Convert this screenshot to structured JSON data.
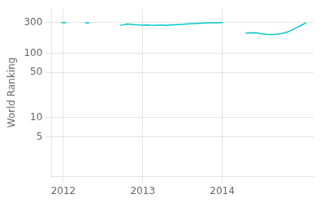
{
  "chart_data": {
    "type": "line",
    "ylabel": "World Ranking",
    "log": "y",
    "grid": true,
    "series": [
      {
        "color": "#00c8c8",
        "x": [
          2011.98,
          2012.03
        ],
        "values": [
          300,
          299
        ]
      },
      {
        "color": "#00c8c8",
        "x": [
          2012.28,
          2012.32
        ],
        "values": [
          296,
          295
        ]
      },
      {
        "color": "#00c8c8",
        "x": [
          2012.72,
          2012.76,
          2012.8,
          2012.85,
          2012.9,
          2012.95,
          2013.0,
          2013.05,
          2013.1,
          2013.15,
          2013.2,
          2013.25,
          2013.3,
          2013.35,
          2013.4,
          2013.45,
          2013.5,
          2013.55,
          2013.6,
          2013.65,
          2013.7,
          2013.75,
          2013.8,
          2013.85,
          2013.9,
          2013.95,
          2014.0
        ],
        "values": [
          272,
          278,
          285,
          282,
          278,
          275,
          274,
          275,
          273,
          272,
          273,
          274,
          272,
          275,
          278,
          280,
          282,
          285,
          287,
          289,
          291,
          293,
          295,
          297,
          298,
          299,
          300
        ]
      },
      {
        "color": "#00c8c8",
        "x": [
          2014.3,
          2014.35,
          2014.4,
          2014.45,
          2014.5,
          2014.55,
          2014.6,
          2014.65,
          2014.7,
          2014.75,
          2014.8,
          2014.85,
          2014.9,
          2014.95,
          2015.0,
          2015.05
        ],
        "values": [
          205,
          207,
          208,
          205,
          200,
          197,
          195,
          196,
          198,
          203,
          210,
          220,
          237,
          255,
          275,
          295
        ]
      }
    ],
    "xlim": [
      2011.85,
      2015.15
    ],
    "xticks": [
      2012,
      2013,
      2014
    ],
    "ylim": [
      1.2,
      500
    ],
    "yticks": [
      5,
      10,
      50,
      100,
      300
    ]
  }
}
